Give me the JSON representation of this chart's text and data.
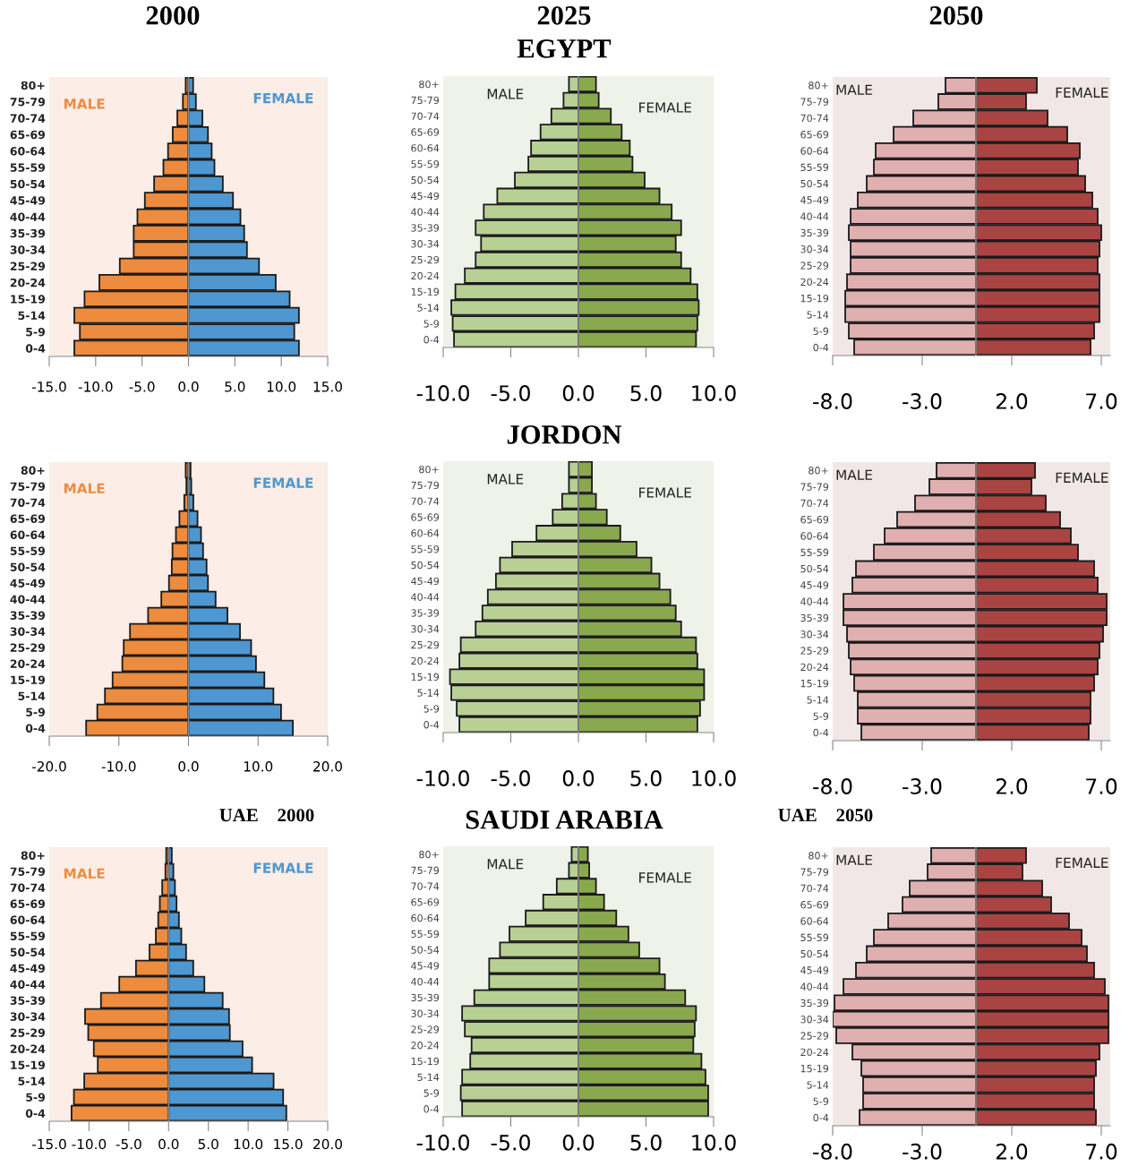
{
  "chart_data": [
    {
      "type": "bar",
      "orientation": "horizontal",
      "stacked": true,
      "title": "2000",
      "categories": [
        "80+",
        "75-79",
        "70-74",
        "65-69",
        "60-64",
        "55-59",
        "50-54",
        "45-49",
        "40-44",
        "35-39",
        "30-34",
        "25-29",
        "20-24",
        "15-19",
        "5-14",
        "5-9",
        "0-4"
      ],
      "xlim": [
        -15,
        15
      ],
      "xticks": [
        {
          "value": -15,
          "label": "-15.0"
        },
        {
          "value": -10,
          "label": "-10.0"
        },
        {
          "value": -5,
          "label": "-5.0"
        },
        {
          "value": 0,
          "label": "0.0"
        },
        {
          "value": 5,
          "label": "5.0"
        },
        {
          "value": 10,
          "label": "10.0"
        },
        {
          "value": 15,
          "label": "15.0"
        }
      ],
      "series": [
        {
          "name": "MALE",
          "color": "#ed8b3e",
          "values": [
            -0.3,
            -0.6,
            -1.2,
            -1.7,
            -2.2,
            -2.7,
            -3.7,
            -4.7,
            -5.5,
            -5.9,
            -5.9,
            -7.4,
            -9.6,
            -11.2,
            -12.3,
            -11.7,
            -12.3
          ]
        },
        {
          "name": "FEMALE",
          "color": "#4f97d0",
          "values": [
            0.5,
            0.8,
            1.5,
            2.1,
            2.5,
            2.8,
            3.7,
            4.8,
            5.6,
            6.0,
            6.3,
            7.6,
            9.4,
            10.9,
            11.9,
            11.4,
            11.9
          ]
        }
      ]
    },
    {
      "type": "bar",
      "orientation": "horizontal",
      "stacked": true,
      "title": "2025",
      "subtitle": "EGYPT",
      "categories": [
        "80+",
        "75-79",
        "70-74",
        "65-69",
        "60-64",
        "55-59",
        "50-54",
        "45-49",
        "40-44",
        "35-39",
        "30-34",
        "25-29",
        "20-24",
        "15-19",
        "5-14",
        "5-9",
        "0-4"
      ],
      "xlim": [
        -10,
        10
      ],
      "xticks": [
        {
          "value": -10,
          "label": "-10.0"
        },
        {
          "value": -5,
          "label": "-5.0"
        },
        {
          "value": 0,
          "label": "0.0"
        },
        {
          "value": 5,
          "label": "5.0"
        },
        {
          "value": 10,
          "label": "10.0"
        }
      ],
      "series": [
        {
          "name": "MALE",
          "color": "#b9d094",
          "values": [
            -0.7,
            -1.1,
            -2.0,
            -2.8,
            -3.5,
            -3.7,
            -4.7,
            -6.0,
            -7.0,
            -7.6,
            -7.2,
            -7.6,
            -8.4,
            -9.1,
            -9.4,
            -9.3,
            -9.2
          ]
        },
        {
          "name": "FEMALE",
          "color": "#8aa84e",
          "values": [
            1.3,
            1.5,
            2.4,
            3.2,
            3.8,
            4.0,
            4.9,
            6.0,
            6.9,
            7.6,
            7.2,
            7.6,
            8.3,
            8.8,
            8.9,
            8.8,
            8.7
          ]
        }
      ]
    },
    {
      "type": "bar",
      "orientation": "horizontal",
      "stacked": true,
      "title": "2050",
      "categories": [
        "80+",
        "75-79",
        "70-74",
        "65-69",
        "60-64",
        "55-59",
        "50-54",
        "45-49",
        "40-44",
        "35-39",
        "30-34",
        "25-29",
        "20-24",
        "15-19",
        "5-14",
        "5-9",
        "0-4"
      ],
      "xlim": [
        -8,
        7.5
      ],
      "xticks": [
        {
          "value": -8,
          "label": "-8.0"
        },
        {
          "value": -3,
          "label": "-3.0"
        },
        {
          "value": 2,
          "label": "2.0"
        },
        {
          "value": 7,
          "label": "7.0"
        }
      ],
      "series": [
        {
          "name": "MALE",
          "color": "#e0afaf",
          "values": [
            -1.7,
            -2.1,
            -3.5,
            -4.6,
            -5.6,
            -5.7,
            -6.1,
            -6.6,
            -7.0,
            -7.1,
            -7.0,
            -7.0,
            -7.2,
            -7.3,
            -7.3,
            -7.1,
            -6.8
          ]
        },
        {
          "name": "FEMALE",
          "color": "#a94442",
          "values": [
            3.4,
            2.8,
            4.0,
            5.1,
            5.8,
            5.7,
            6.1,
            6.5,
            6.8,
            7.0,
            6.9,
            6.8,
            6.9,
            6.9,
            6.9,
            6.6,
            6.4
          ]
        }
      ]
    },
    {
      "type": "bar",
      "orientation": "horizontal",
      "stacked": true,
      "categories": [
        "80+",
        "75-79",
        "70-74",
        "65-69",
        "60-64",
        "55-59",
        "50-54",
        "45-49",
        "40-44",
        "35-39",
        "30-34",
        "25-29",
        "20-24",
        "15-19",
        "5-14",
        "5-9",
        "0-4"
      ],
      "xlim": [
        -20,
        20
      ],
      "xticks": [
        {
          "value": -20,
          "label": "-20.0"
        },
        {
          "value": -10,
          "label": "-10.0"
        },
        {
          "value": 0,
          "label": "0.0"
        },
        {
          "value": 10,
          "label": "10.0"
        },
        {
          "value": 20,
          "label": "20.0"
        }
      ],
      "series": [
        {
          "name": "MALE",
          "color": "#ed8b3e",
          "values": [
            -0.4,
            -0.3,
            -0.6,
            -1.3,
            -1.8,
            -2.3,
            -2.4,
            -2.8,
            -3.9,
            -5.8,
            -8.4,
            -9.3,
            -9.5,
            -10.9,
            -12.0,
            -13.1,
            -14.7
          ]
        },
        {
          "name": "FEMALE",
          "color": "#4f97d0",
          "values": [
            0.3,
            0.4,
            0.7,
            1.3,
            1.8,
            2.1,
            2.6,
            2.8,
            3.9,
            5.6,
            7.4,
            9.0,
            9.7,
            10.9,
            12.2,
            13.3,
            15.0
          ]
        }
      ]
    },
    {
      "type": "bar",
      "orientation": "horizontal",
      "stacked": true,
      "title": "JORDON",
      "categories": [
        "80+",
        "75-79",
        "70-74",
        "65-69",
        "60-64",
        "55-59",
        "50-54",
        "45-49",
        "40-44",
        "35-39",
        "30-34",
        "25-29",
        "20-24",
        "15-19",
        "5-14",
        "5-9",
        "0-4"
      ],
      "xlim": [
        -10,
        10
      ],
      "xticks": [
        {
          "value": -10,
          "label": "-10.0"
        },
        {
          "value": -5,
          "label": "-5.0"
        },
        {
          "value": 0,
          "label": "0.0"
        },
        {
          "value": 5,
          "label": "5.0"
        },
        {
          "value": 10,
          "label": "10.0"
        }
      ],
      "series": [
        {
          "name": "MALE",
          "color": "#b9d094",
          "values": [
            -0.7,
            -0.7,
            -1.2,
            -1.9,
            -3.1,
            -4.9,
            -5.8,
            -6.1,
            -6.7,
            -7.1,
            -7.6,
            -8.7,
            -8.8,
            -9.5,
            -9.4,
            -9.0,
            -8.8
          ]
        },
        {
          "name": "FEMALE",
          "color": "#8aa84e",
          "values": [
            1.0,
            1.0,
            1.3,
            2.1,
            3.1,
            4.3,
            5.4,
            6.0,
            6.8,
            7.2,
            7.6,
            8.7,
            8.8,
            9.3,
            9.3,
            9.0,
            8.8
          ]
        }
      ]
    },
    {
      "type": "bar",
      "orientation": "horizontal",
      "stacked": true,
      "categories": [
        "80+",
        "75-79",
        "70-74",
        "65-69",
        "60-64",
        "55-59",
        "50-54",
        "45-49",
        "40-44",
        "35-39",
        "30-34",
        "25-29",
        "20-24",
        "15-19",
        "5-14",
        "5-9",
        "0-4"
      ],
      "xlim": [
        -8,
        7.5
      ],
      "xticks": [
        {
          "value": -8,
          "label": "-8.0"
        },
        {
          "value": -3,
          "label": "-3.0"
        },
        {
          "value": 2,
          "label": "2.0"
        },
        {
          "value": 7,
          "label": "7.0"
        }
      ],
      "series": [
        {
          "name": "MALE",
          "color": "#e0afaf",
          "values": [
            -2.2,
            -2.6,
            -3.4,
            -4.4,
            -5.1,
            -5.7,
            -6.7,
            -6.9,
            -7.4,
            -7.4,
            -7.2,
            -7.1,
            -7.0,
            -6.8,
            -6.6,
            -6.6,
            -6.4
          ]
        },
        {
          "name": "FEMALE",
          "color": "#a94442",
          "values": [
            3.3,
            3.1,
            3.9,
            4.7,
            5.3,
            5.7,
            6.6,
            6.8,
            7.3,
            7.3,
            7.1,
            6.9,
            6.8,
            6.6,
            6.4,
            6.4,
            6.3
          ]
        }
      ]
    },
    {
      "type": "bar",
      "orientation": "horizontal",
      "stacked": true,
      "title": "UAE    2000",
      "categories": [
        "80+",
        "75-79",
        "70-74",
        "65-69",
        "60-64",
        "55-59",
        "50-54",
        "45-49",
        "40-44",
        "35-39",
        "30-34",
        "25-29",
        "20-24",
        "15-19",
        "5-14",
        "5-9",
        "0-4"
      ],
      "xlim": [
        -15,
        20
      ],
      "xticks": [
        {
          "value": -15,
          "label": "-15.0"
        },
        {
          "value": -10,
          "label": "-10.0"
        },
        {
          "value": -5,
          "label": "-5.0"
        },
        {
          "value": 0,
          "label": "0.0"
        },
        {
          "value": 5,
          "label": "5.0"
        },
        {
          "value": 10,
          "label": "10.0"
        },
        {
          "value": 15,
          "label": "15.0"
        },
        {
          "value": 20,
          "label": "20.0"
        }
      ],
      "series": [
        {
          "name": "MALE",
          "color": "#ed8b3e",
          "values": [
            -0.3,
            -0.4,
            -0.8,
            -1.1,
            -1.3,
            -1.6,
            -2.4,
            -4.1,
            -6.2,
            -8.5,
            -10.5,
            -10.1,
            -9.4,
            -8.9,
            -10.6,
            -11.9,
            -12.2
          ]
        },
        {
          "name": "FEMALE",
          "color": "#4f97d0",
          "values": [
            0.4,
            0.6,
            0.8,
            1.0,
            1.3,
            1.6,
            2.2,
            3.1,
            4.5,
            6.8,
            7.6,
            7.7,
            9.3,
            10.5,
            13.2,
            14.4,
            14.8
          ]
        }
      ]
    },
    {
      "type": "bar",
      "orientation": "horizontal",
      "stacked": true,
      "title": "SAUDI ARABIA",
      "categories": [
        "80+",
        "75-79",
        "70-74",
        "65-69",
        "60-64",
        "55-59",
        "50-54",
        "45-49",
        "40-44",
        "35-39",
        "30-34",
        "25-29",
        "20-24",
        "15-19",
        "5-14",
        "5-9",
        "0-4"
      ],
      "xlim": [
        -10,
        10
      ],
      "xticks": [
        {
          "value": -10,
          "label": "-10.0"
        },
        {
          "value": -5,
          "label": "-5.0"
        },
        {
          "value": 0,
          "label": "0.0"
        },
        {
          "value": 5,
          "label": "5.0"
        },
        {
          "value": 10,
          "label": "10.0"
        }
      ],
      "series": [
        {
          "name": "MALE",
          "color": "#b9d094",
          "values": [
            -0.5,
            -0.7,
            -1.6,
            -2.6,
            -3.9,
            -5.1,
            -5.8,
            -6.6,
            -6.6,
            -7.7,
            -8.6,
            -8.4,
            -7.9,
            -8.0,
            -8.6,
            -8.7,
            -8.6
          ]
        },
        {
          "name": "FEMALE",
          "color": "#8aa84e",
          "values": [
            0.7,
            0.8,
            1.3,
            1.9,
            2.8,
            3.7,
            4.5,
            6.0,
            6.4,
            7.9,
            8.7,
            8.6,
            8.5,
            9.1,
            9.4,
            9.6,
            9.6
          ]
        }
      ]
    },
    {
      "type": "bar",
      "orientation": "horizontal",
      "stacked": true,
      "title": "UAE    2050",
      "categories": [
        "80+",
        "75-79",
        "70-74",
        "65-69",
        "60-64",
        "55-59",
        "50-54",
        "45-49",
        "40-44",
        "35-39",
        "30-34",
        "25-29",
        "20-24",
        "15-19",
        "5-14",
        "5-9",
        "0-4"
      ],
      "xlim": [
        -8,
        7.5
      ],
      "xticks": [
        {
          "value": -8,
          "label": "-8.0"
        },
        {
          "value": -3,
          "label": "-3.0"
        },
        {
          "value": 2,
          "label": "2.0"
        },
        {
          "value": 7,
          "label": "7.0"
        }
      ],
      "series": [
        {
          "name": "MALE",
          "color": "#e0afaf",
          "values": [
            -2.5,
            -2.7,
            -3.7,
            -4.1,
            -4.9,
            -5.7,
            -6.1,
            -6.7,
            -7.4,
            -7.9,
            -8.0,
            -7.8,
            -6.9,
            -6.4,
            -6.3,
            -6.3,
            -6.5
          ]
        },
        {
          "name": "FEMALE",
          "color": "#a94442",
          "values": [
            2.8,
            2.6,
            3.7,
            4.2,
            5.2,
            5.9,
            6.2,
            6.6,
            7.2,
            7.4,
            7.4,
            7.4,
            6.9,
            6.7,
            6.6,
            6.6,
            6.7
          ]
        }
      ]
    }
  ]
}
